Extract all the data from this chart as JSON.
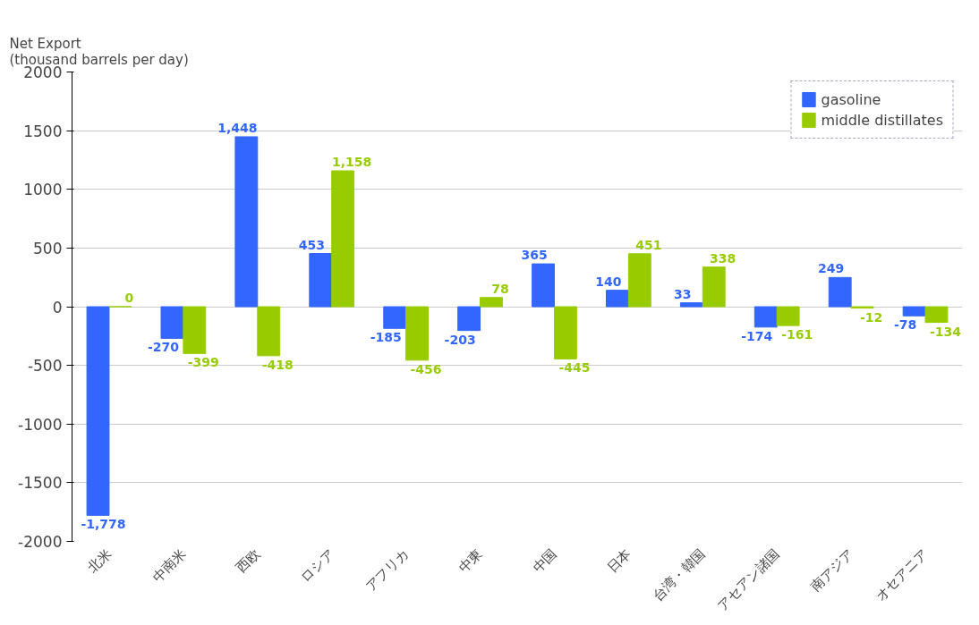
{
  "chart_data": {
    "type": "bar",
    "ylabel": "Net Export\n(thousand barrels per day)",
    "categories": [
      "北米",
      "中南米",
      "西欧",
      "ロシア",
      "アフリカ",
      "中東",
      "中国",
      "日本",
      "台湾・韓国",
      "アセアン諸国",
      "南アジア",
      "オセアニア"
    ],
    "series": [
      {
        "name": "gasoline",
        "color": "#3366ff",
        "values": [
          -1778,
          -270,
          1448,
          453,
          -185,
          -203,
          365,
          140,
          33,
          -174,
          249,
          -78
        ],
        "value_labels": [
          "-1,778",
          "-270",
          "1,448",
          "453",
          "-185",
          "-203",
          "365",
          "140",
          "33",
          "-174",
          "249",
          "-78"
        ]
      },
      {
        "name": "middle distillates",
        "color": "#99cc00",
        "values": [
          0,
          -399,
          -418,
          1158,
          -456,
          78,
          -445,
          451,
          338,
          -161,
          -12,
          -134
        ],
        "value_labels": [
          "0",
          "-399",
          "-418",
          "1,158",
          "-456",
          "78",
          "-445",
          "451",
          "338",
          "-161",
          "-12",
          "-134"
        ]
      }
    ],
    "ylim": [
      -2000,
      2000
    ],
    "yticks": [
      -2000,
      -1500,
      -1000,
      -500,
      0,
      500,
      1000,
      1500,
      2000
    ],
    "grid": "y",
    "legend": "top right"
  }
}
